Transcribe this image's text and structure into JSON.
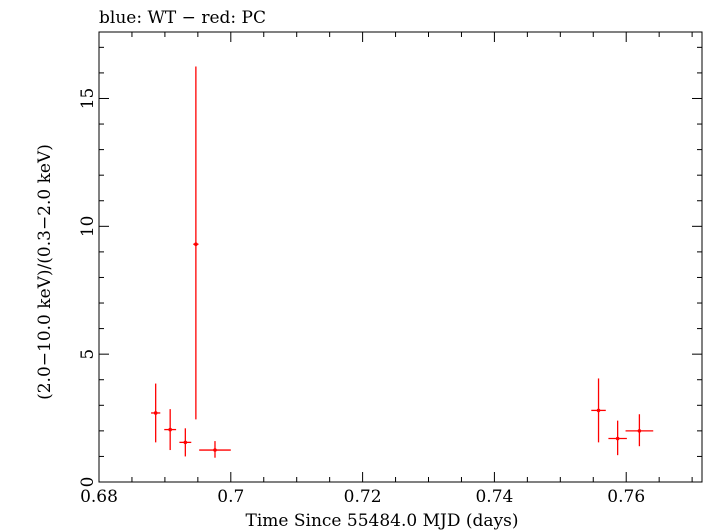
{
  "chart_data": {
    "type": "scatter",
    "title": "blue: WT − red: PC",
    "xlabel": "Time Since 55484.0 MJD (days)",
    "ylabel": "(2.0−10.0 keV)/(0.3−2.0 keV)",
    "xlim": [
      0.68,
      0.7715
    ],
    "ylim": [
      0,
      17.6
    ],
    "x_ticks": [
      0.68,
      0.7,
      0.72,
      0.74,
      0.76
    ],
    "x_tick_labels": [
      "0.68",
      "0.7",
      "0.72",
      "0.74",
      "0.76"
    ],
    "y_ticks": [
      0,
      5,
      10,
      15
    ],
    "y_tick_labels": [
      "0",
      "5",
      "10",
      "15"
    ],
    "grid": false,
    "series": [
      {
        "name": "PC",
        "color": "#ff0000",
        "points": [
          {
            "x": 0.6886,
            "y": 2.7,
            "xerr": 0.0007,
            "ylo": 1.55,
            "yhi": 3.85
          },
          {
            "x": 0.6908,
            "y": 2.05,
            "xerr": 0.0009,
            "ylo": 1.25,
            "yhi": 2.85
          },
          {
            "x": 0.6931,
            "y": 1.55,
            "xerr": 0.0009,
            "ylo": 1.0,
            "yhi": 2.1
          },
          {
            "x": 0.6947,
            "y": 9.3,
            "xerr": 0.0004,
            "ylo": 2.45,
            "yhi": 16.25
          },
          {
            "x": 0.6976,
            "y": 1.25,
            "xerr": 0.0024,
            "ylo": 0.95,
            "yhi": 1.6
          },
          {
            "x": 0.7558,
            "y": 2.8,
            "xerr": 0.0011,
            "ylo": 1.55,
            "yhi": 4.05
          },
          {
            "x": 0.7587,
            "y": 1.7,
            "xerr": 0.0014,
            "ylo": 1.05,
            "yhi": 2.4
          },
          {
            "x": 0.762,
            "y": 2.0,
            "xerr": 0.0021,
            "ylo": 1.4,
            "yhi": 2.65
          }
        ]
      }
    ]
  }
}
